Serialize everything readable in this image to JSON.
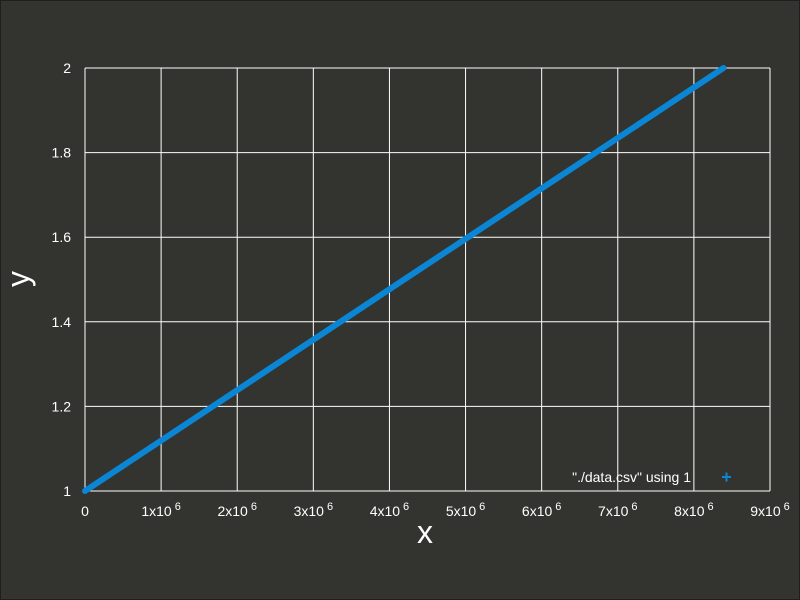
{
  "chart_data": {
    "type": "line",
    "xlabel": "x",
    "ylabel": "y",
    "xlim": [
      0,
      9000000
    ],
    "ylim": [
      1,
      2
    ],
    "x_ticks": [
      {
        "value": 0,
        "mantissa": "0",
        "exp": ""
      },
      {
        "value": 1000000,
        "mantissa": "1x10",
        "exp": "6"
      },
      {
        "value": 2000000,
        "mantissa": "2x10",
        "exp": "6"
      },
      {
        "value": 3000000,
        "mantissa": "3x10",
        "exp": "6"
      },
      {
        "value": 4000000,
        "mantissa": "4x10",
        "exp": "6"
      },
      {
        "value": 5000000,
        "mantissa": "5x10",
        "exp": "6"
      },
      {
        "value": 6000000,
        "mantissa": "6x10",
        "exp": "6"
      },
      {
        "value": 7000000,
        "mantissa": "7x10",
        "exp": "6"
      },
      {
        "value": 8000000,
        "mantissa": "8x10",
        "exp": "6"
      },
      {
        "value": 9000000,
        "mantissa": "9x10",
        "exp": "6"
      }
    ],
    "y_ticks": [
      {
        "value": 1,
        "label": "1"
      },
      {
        "value": 1.2,
        "label": "1.2"
      },
      {
        "value": 1.4,
        "label": "1.4"
      },
      {
        "value": 1.6,
        "label": "1.6"
      },
      {
        "value": 1.8,
        "label": "1.8"
      },
      {
        "value": 2,
        "label": "2"
      }
    ],
    "grid": true,
    "legend_position": "bottom-right",
    "series": [
      {
        "name": "\"./data.csv\" using 1",
        "color": "#0a86d4",
        "marker": "+",
        "x": [
          0,
          8388608
        ],
        "y": [
          1,
          2
        ]
      }
    ]
  },
  "colors": {
    "background": "#333330",
    "grid": "#ffffff",
    "text": "#ffffff",
    "series": "#0a86d4"
  }
}
